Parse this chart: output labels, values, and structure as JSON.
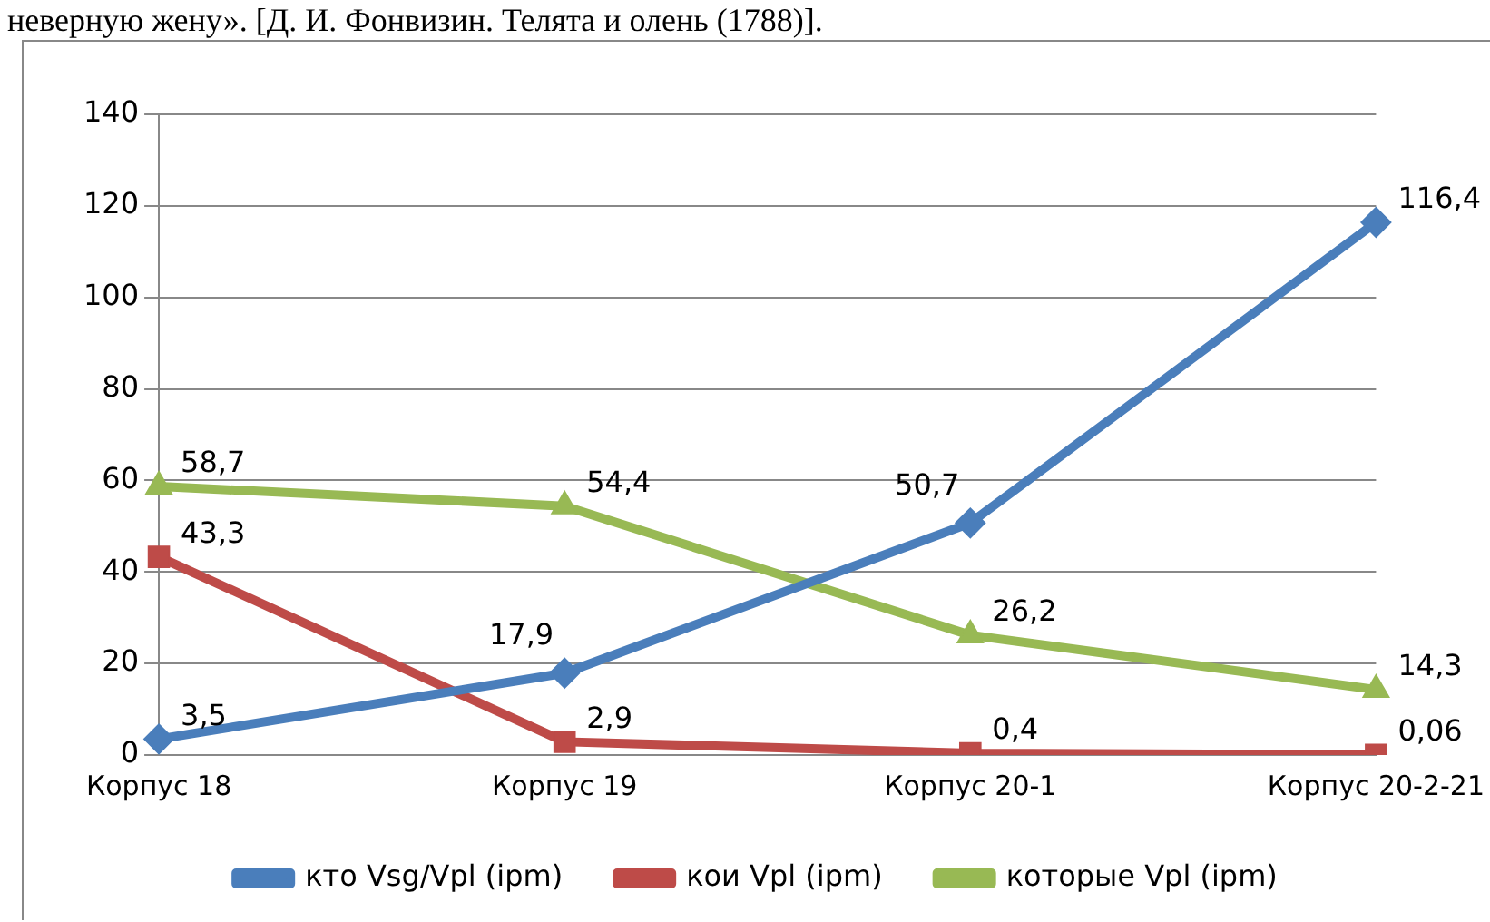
{
  "chart_data": {
    "type": "line",
    "annotations": [
      "неверную жену». [Д. И. Фонвизин. Телята и олень (1788)]."
    ],
    "categories": [
      "Корпус 18",
      "Корпус 19",
      "Корпус 20-1",
      "Корпус 20-2-21"
    ],
    "ylim": [
      0,
      140
    ],
    "yticks": [
      0,
      20,
      40,
      60,
      80,
      100,
      120,
      140
    ],
    "grid": "y",
    "legend": "bottom",
    "line_style": "solid",
    "series": [
      {
        "name": "кто Vsg/Vpl (ipm)",
        "color": "#4a7ebb",
        "marker": "diamond",
        "values": [
          3.5,
          17.9,
          50.7,
          116.4
        ],
        "value_labels": [
          "3,5",
          "17,9",
          "50,7",
          "116,4"
        ]
      },
      {
        "name": "кои Vpl (ipm)",
        "color": "#be4b48",
        "marker": "square",
        "values": [
          43.3,
          2.9,
          0.4,
          0.06
        ],
        "value_labels": [
          "43,3",
          "2,9",
          "0,4",
          "0,06"
        ]
      },
      {
        "name": "которые Vpl (ipm)",
        "color": "#98b954",
        "marker": "triangle",
        "values": [
          58.7,
          54.4,
          26.2,
          14.3
        ],
        "value_labels": [
          "58,7",
          "54,4",
          "26,2",
          "14,3"
        ]
      }
    ]
  }
}
